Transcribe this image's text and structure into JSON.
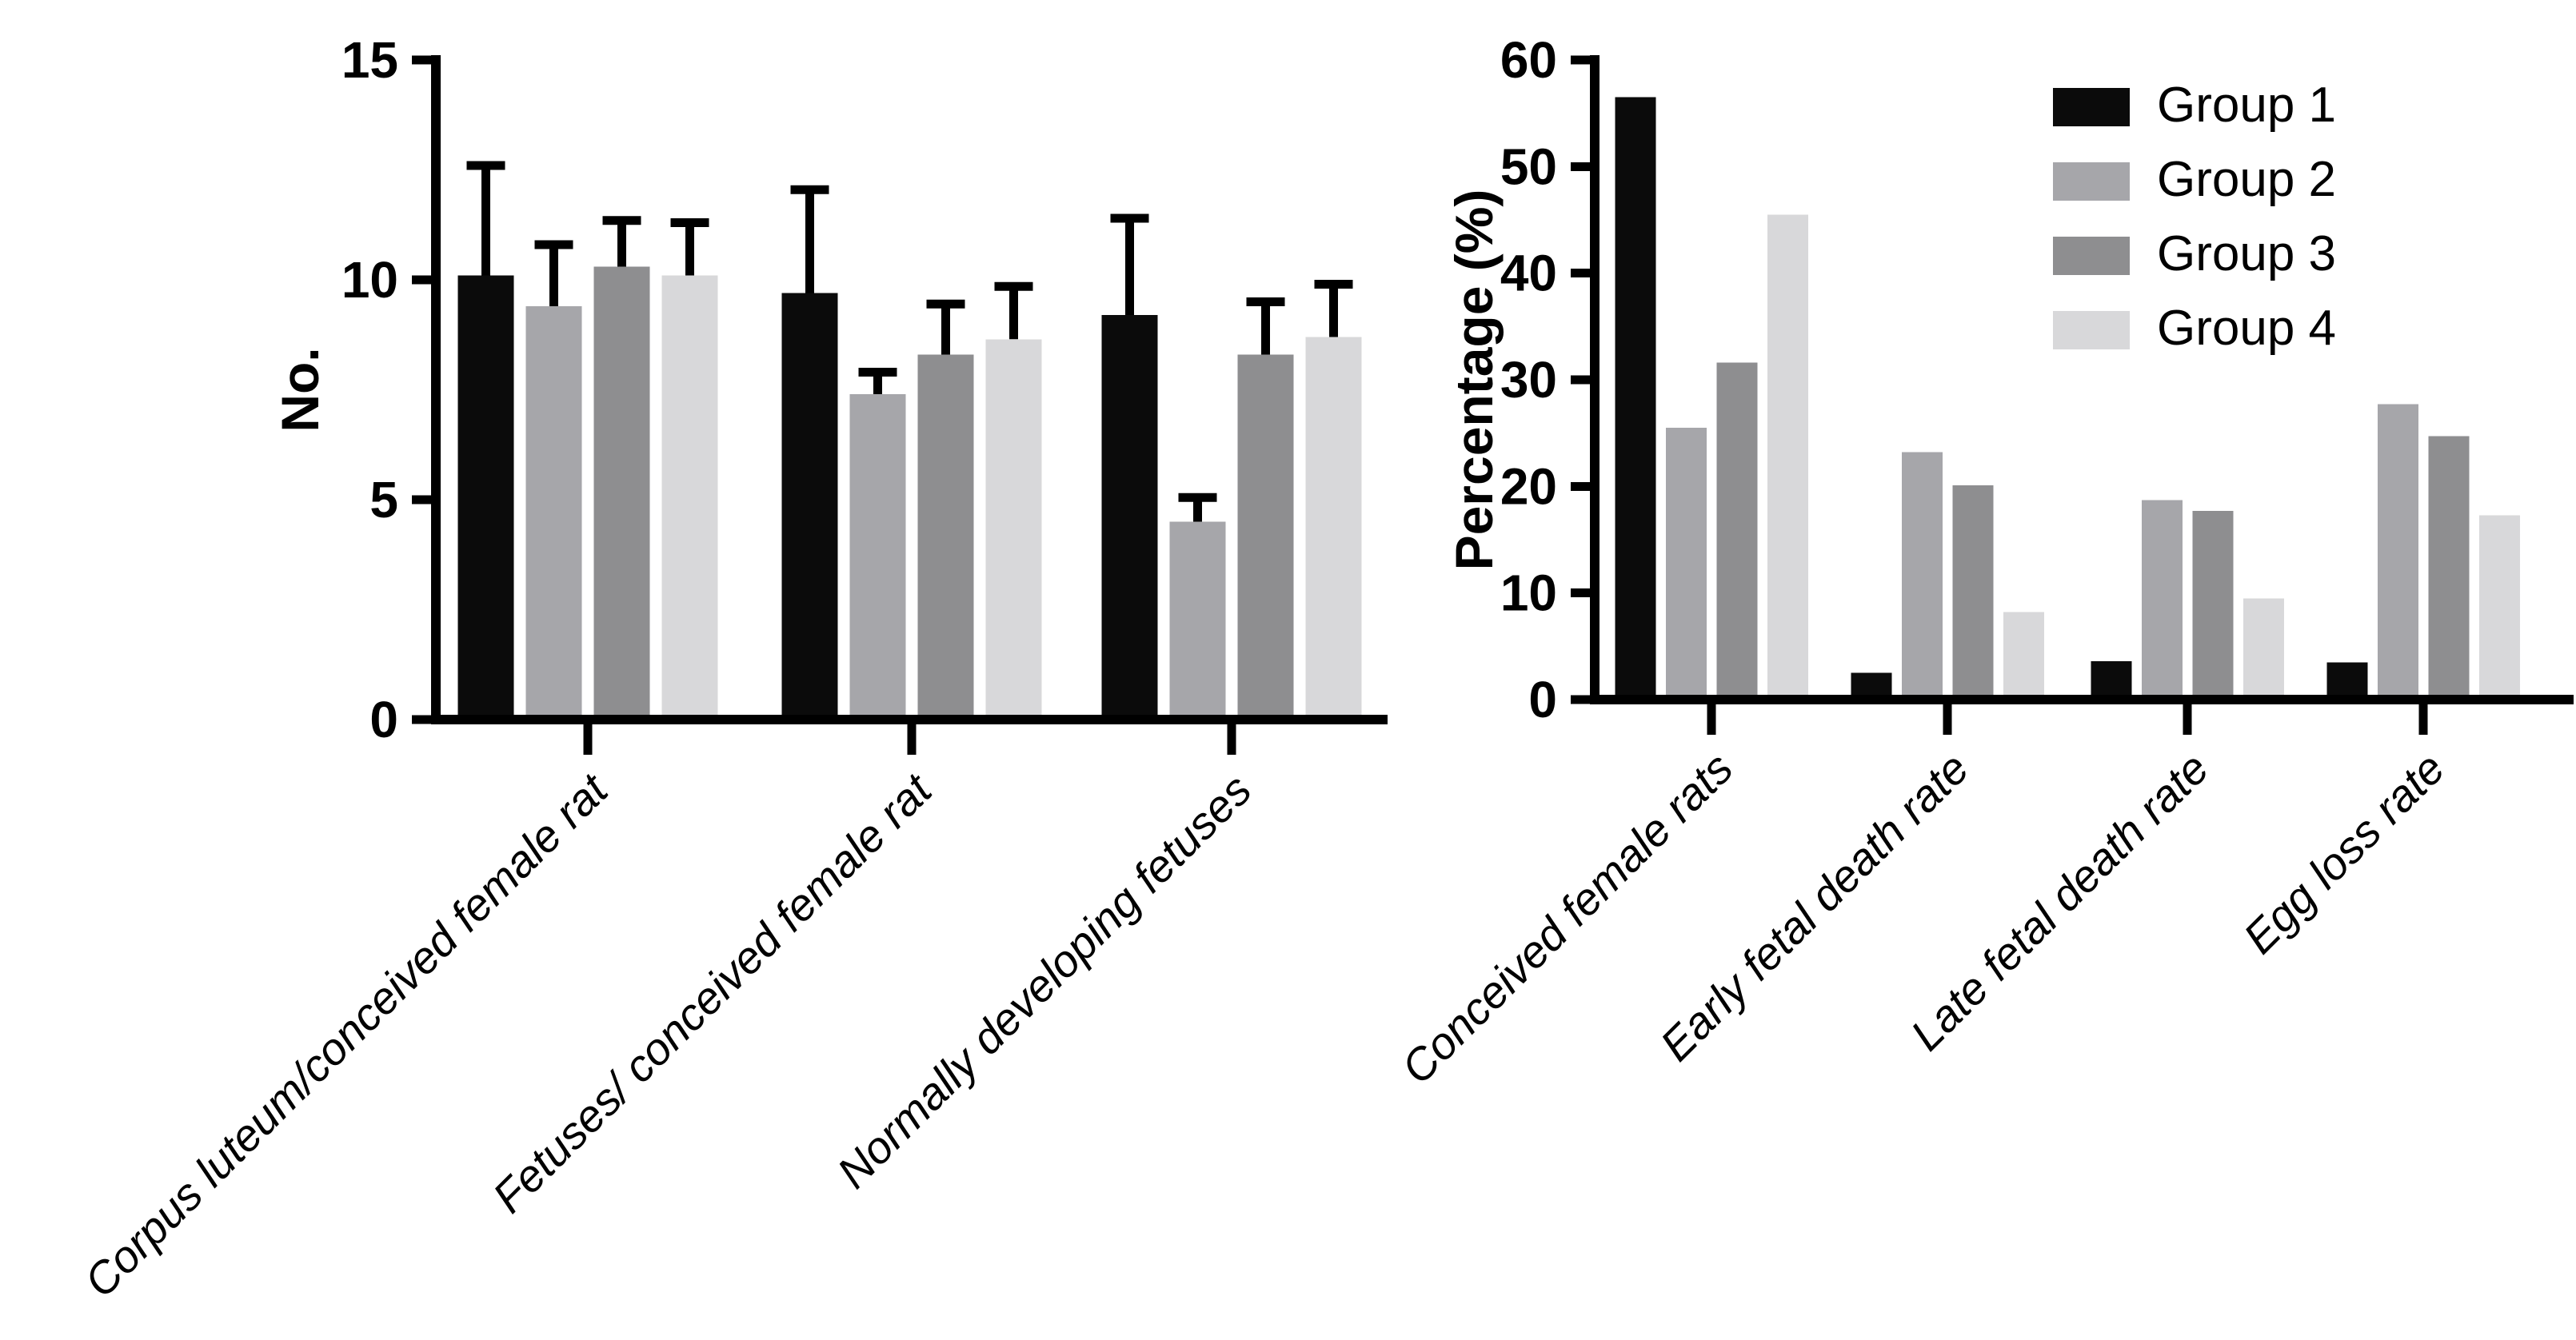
{
  "figure": {
    "background": "#ffffff",
    "text_color": "#000000",
    "legend": {
      "position": "top-right",
      "items": [
        {
          "label": "Group 1",
          "color": "#0b0b0b"
        },
        {
          "label": "Group 2",
          "color": "#a6a6aa"
        },
        {
          "label": "Group 3",
          "color": "#8e8e90"
        },
        {
          "label": "Group 4",
          "color": "#d8d8da"
        }
      ]
    }
  },
  "chart_data": [
    {
      "type": "bar",
      "title": "",
      "xlabel": "",
      "ylabel": "No.",
      "ylim": [
        0,
        15
      ],
      "yticks": [
        0,
        5,
        10,
        15
      ],
      "grid": false,
      "error_bars": true,
      "legend_position": "none",
      "categories": [
        "Corpus luteum/conceived female rat",
        "Fetuses/ conceived female rat",
        "Normally developing fetuses"
      ],
      "series": [
        {
          "name": "Group 1",
          "color": "#0b0b0b",
          "values": [
            10.1,
            9.7,
            9.2
          ],
          "errors": [
            2.5,
            2.35,
            2.2
          ]
        },
        {
          "name": "Group 2",
          "color": "#a6a6aa",
          "values": [
            9.4,
            7.4,
            4.5
          ],
          "errors": [
            1.4,
            0.5,
            0.55
          ]
        },
        {
          "name": "Group 3",
          "color": "#8e8e90",
          "values": [
            10.3,
            8.3,
            8.3
          ],
          "errors": [
            1.05,
            1.15,
            1.2
          ]
        },
        {
          "name": "Group 4",
          "color": "#d8d8da",
          "values": [
            10.1,
            8.65,
            8.7
          ],
          "errors": [
            1.2,
            1.2,
            1.2
          ]
        }
      ]
    },
    {
      "type": "bar",
      "title": "",
      "xlabel": "",
      "ylabel": "Percentage (%)",
      "ylim": [
        0,
        60
      ],
      "yticks": [
        0,
        10,
        20,
        30,
        40,
        50,
        60
      ],
      "grid": false,
      "error_bars": false,
      "legend_position": "top-right",
      "categories": [
        "Conceived female rats",
        "Early fetal death rate",
        "Late fetal death rate",
        "Egg loss rate"
      ],
      "series": [
        {
          "name": "Group 1",
          "color": "#0b0b0b",
          "values": [
            56.5,
            2.5,
            3.6,
            3.5
          ]
        },
        {
          "name": "Group 2",
          "color": "#a6a6aa",
          "values": [
            25.5,
            23.2,
            18.7,
            27.7
          ]
        },
        {
          "name": "Group 3",
          "color": "#8e8e90",
          "values": [
            31.6,
            20.1,
            17.7,
            24.7
          ]
        },
        {
          "name": "Group 4",
          "color": "#d8d8da",
          "values": [
            45.5,
            8.2,
            9.5,
            17.3
          ]
        }
      ]
    }
  ]
}
